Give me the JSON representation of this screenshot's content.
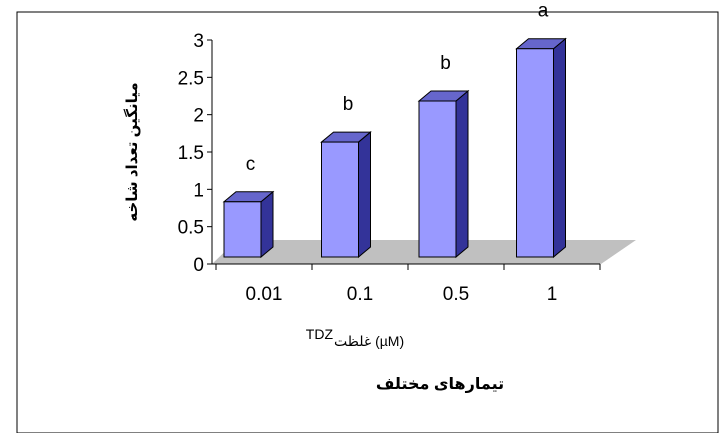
{
  "chart_data": {
    "type": "bar",
    "categories": [
      "0.01",
      "0.1",
      "0.5",
      "1"
    ],
    "values": [
      0.9,
      1.7,
      2.25,
      2.95
    ],
    "significance_letters": [
      "c",
      "b",
      "b",
      "a"
    ],
    "ylim": [
      0,
      3
    ],
    "y_ticks": [
      "0",
      "0.5",
      "1",
      "1.5",
      "2",
      "2.5",
      "3"
    ],
    "ylabel": "میانگین تعداد شاخه",
    "xlabel_suffix": "TDZ",
    "xlabel_main": "غلظت (µM)",
    "footer_label": "تیمارهای مختلف",
    "grid": false,
    "colors": {
      "bar_front": "#9999FF",
      "bar_side": "#333399",
      "bar_top": "#6666CC",
      "floor": "#C0C0C0",
      "axis": "#000000",
      "edge": "#000000"
    }
  }
}
